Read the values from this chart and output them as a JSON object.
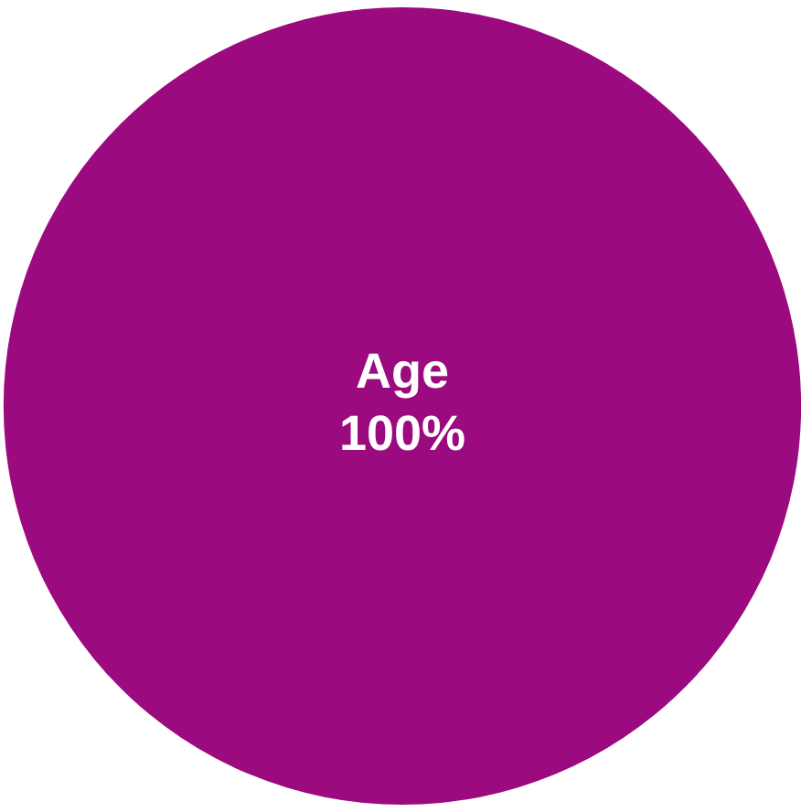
{
  "chart_data": {
    "type": "pie",
    "categories": [
      "Age"
    ],
    "values": [
      100
    ],
    "colors": [
      "#9b0a7e"
    ],
    "value_labels": [
      "100%"
    ]
  }
}
